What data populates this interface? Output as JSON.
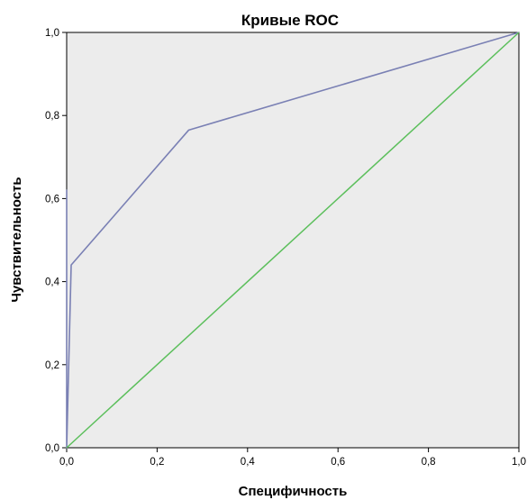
{
  "chart_data": {
    "type": "line",
    "title": "Кривые ROC",
    "xlabel": "Специфичность",
    "ylabel": "Чувствительность",
    "xlim": [
      0,
      1
    ],
    "ylim": [
      0,
      1
    ],
    "x_ticks": [
      "0,0",
      "0,2",
      "0,4",
      "0,6",
      "0,8",
      "1,0"
    ],
    "y_ticks": [
      "0,0",
      "0,2",
      "0,4",
      "0,6",
      "0,8",
      "1,0"
    ],
    "x_tick_values": [
      0,
      0.2,
      0.4,
      0.6,
      0.8,
      1.0
    ],
    "y_tick_values": [
      0,
      0.2,
      0.4,
      0.6,
      0.8,
      1.0
    ],
    "grid": false,
    "plot_background": "#ececec",
    "series": [
      {
        "color": "#7a80b4",
        "points": [
          {
            "x": 0.0,
            "y": 0.0
          },
          {
            "x": 0.0,
            "y": 0.62
          },
          {
            "x": 0.0,
            "y": 0.0
          },
          {
            "x": 0.01,
            "y": 0.44
          },
          {
            "x": 0.27,
            "y": 0.765
          },
          {
            "x": 1.0,
            "y": 1.0
          }
        ]
      },
      {
        "color": "#5cbf5c",
        "points": [
          {
            "x": 0.0,
            "y": 0.0
          },
          {
            "x": 1.0,
            "y": 1.0
          }
        ]
      }
    ]
  }
}
